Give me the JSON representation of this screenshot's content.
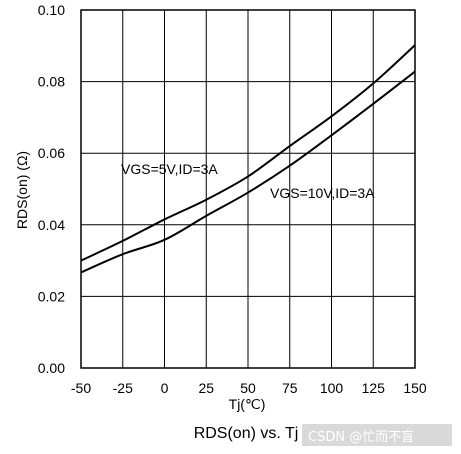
{
  "chart_data": {
    "type": "line",
    "title": "",
    "caption": "RDS(on) vs. Tj",
    "xlabel": "Tj(℃)",
    "ylabel": "RDS(on) (Ω)",
    "xlim": [
      -50,
      150
    ],
    "ylim": [
      0.0,
      0.1
    ],
    "x_ticks": [
      "-50",
      "-25",
      "0",
      "25",
      "50",
      "75",
      "100",
      "125",
      "150"
    ],
    "y_ticks": [
      "0.00",
      "0.02",
      "0.04",
      "0.06",
      "0.08",
      "0.10"
    ],
    "grid": true,
    "legend": "none",
    "line_color": "#000000",
    "grid_color": "#000000",
    "series": [
      {
        "name": "VGS=5V,ID=3A",
        "x": [
          -50,
          -25,
          0,
          25,
          50,
          75,
          100,
          125,
          150
        ],
        "values": [
          0.03,
          0.0355,
          0.0415,
          0.047,
          0.0535,
          0.062,
          0.0703,
          0.0795,
          0.0902
        ]
      },
      {
        "name": "VGS=10V,ID=3A",
        "x": [
          -50,
          -25,
          0,
          25,
          50,
          75,
          100,
          125,
          150
        ],
        "values": [
          0.0267,
          0.0318,
          0.0358,
          0.0425,
          0.049,
          0.0565,
          0.065,
          0.0738,
          0.0828
        ]
      }
    ]
  },
  "watermark": "CSDN @忙而不盲"
}
